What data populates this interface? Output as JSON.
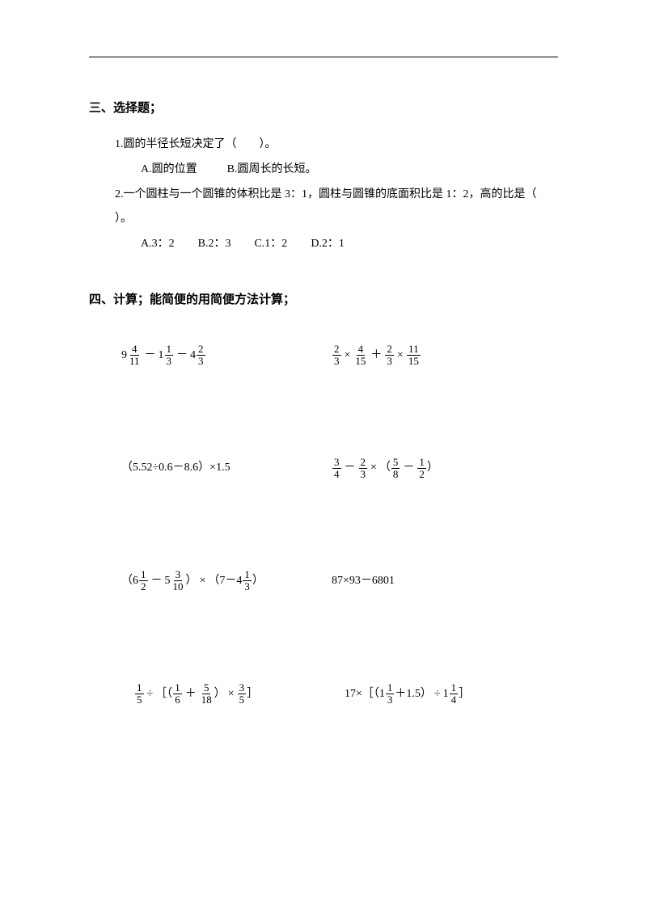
{
  "colors": {
    "text": "#000000",
    "background": "#ffffff",
    "rule": "#000000"
  },
  "typography": {
    "font_family": "SimSun",
    "body_fontsize_pt": 10.5,
    "title_fontsize_pt": 11,
    "title_weight": "bold"
  },
  "section3": {
    "title": "三、选择题；",
    "q1": {
      "text": "1.圆的半径长短决定了（　　）。",
      "options": {
        "A": "A.圆的位置",
        "B": "B.圆周长的长短。"
      }
    },
    "q2": {
      "text_a": "2.一个圆柱与一个圆锥的体积比是 3：1，圆柱与圆锥的底面积比是 1：2，高的比是（",
      "text_b": "）。",
      "options": {
        "A": "A.3：2",
        "B": "B.2：3",
        "C": "C.1：2",
        "D": "D.2：1"
      }
    }
  },
  "section4": {
    "title": "四、计算；能简便的用简便方法计算；",
    "rows": [
      {
        "left": {
          "tokens": [
            {
              "t": "mixed",
              "w": "9",
              "n": "4",
              "d": "11"
            },
            {
              "t": "op",
              "v": "－"
            },
            {
              "t": "mixed",
              "w": "1",
              "n": "1",
              "d": "3"
            },
            {
              "t": "op",
              "v": "－"
            },
            {
              "t": "mixed",
              "w": "4",
              "n": "2",
              "d": "3"
            }
          ]
        },
        "right": {
          "tokens": [
            {
              "t": "frac",
              "n": "2",
              "d": "3"
            },
            {
              "t": "op",
              "v": "×"
            },
            {
              "t": "frac",
              "n": "4",
              "d": "15"
            },
            {
              "t": "op",
              "v": "＋"
            },
            {
              "t": "frac",
              "n": "2",
              "d": "3"
            },
            {
              "t": "op",
              "v": "×"
            },
            {
              "t": "frac",
              "n": "11",
              "d": "15"
            }
          ]
        }
      },
      {
        "left": {
          "tokens": [
            {
              "t": "txt",
              "v": "（5.52÷0.6－8.6）×1.5"
            }
          ]
        },
        "right": {
          "tokens": [
            {
              "t": "frac",
              "n": "3",
              "d": "4"
            },
            {
              "t": "op",
              "v": "－"
            },
            {
              "t": "frac",
              "n": "2",
              "d": "3"
            },
            {
              "t": "op",
              "v": "×"
            },
            {
              "t": "txt",
              "v": "（"
            },
            {
              "t": "frac",
              "n": "5",
              "d": "8"
            },
            {
              "t": "op",
              "v": "－"
            },
            {
              "t": "frac",
              "n": "1",
              "d": "2"
            },
            {
              "t": "txt",
              "v": "）"
            }
          ]
        }
      },
      {
        "left": {
          "tokens": [
            {
              "t": "txt",
              "v": "（"
            },
            {
              "t": "mixed",
              "w": "6",
              "n": "1",
              "d": "2"
            },
            {
              "t": "op",
              "v": "－"
            },
            {
              "t": "mixed",
              "w": "5",
              "n": "3",
              "d": "10"
            },
            {
              "t": "txt",
              "v": "）"
            },
            {
              "t": "op",
              "v": "×"
            },
            {
              "t": "txt",
              "v": "（7－"
            },
            {
              "t": "mixed",
              "w": "4",
              "n": "1",
              "d": "3"
            },
            {
              "t": "txt",
              "v": "）"
            }
          ]
        },
        "right": {
          "tokens": [
            {
              "t": "txt",
              "v": "87×93－6801"
            }
          ]
        }
      },
      {
        "left": {
          "tokens": [
            {
              "t": "frac",
              "n": "1",
              "d": "5"
            },
            {
              "t": "op",
              "v": "÷"
            },
            {
              "t": "txt",
              "v": "［（"
            },
            {
              "t": "frac",
              "n": "1",
              "d": "6"
            },
            {
              "t": "op",
              "v": "＋"
            },
            {
              "t": "frac",
              "n": "5",
              "d": "18"
            },
            {
              "t": "txt",
              "v": "）"
            },
            {
              "t": "op",
              "v": "×"
            },
            {
              "t": "frac",
              "n": "3",
              "d": "5"
            },
            {
              "t": "txt",
              "v": "］"
            }
          ]
        },
        "right": {
          "tokens": [
            {
              "t": "txt",
              "v": "17×［（"
            },
            {
              "t": "mixed",
              "w": "1",
              "n": "1",
              "d": "3"
            },
            {
              "t": "txt",
              "v": "＋1.5）"
            },
            {
              "t": "op",
              "v": "÷"
            },
            {
              "t": "mixed",
              "w": "1",
              "n": "1",
              "d": "4"
            },
            {
              "t": "txt",
              "v": "］"
            }
          ]
        }
      }
    ]
  }
}
